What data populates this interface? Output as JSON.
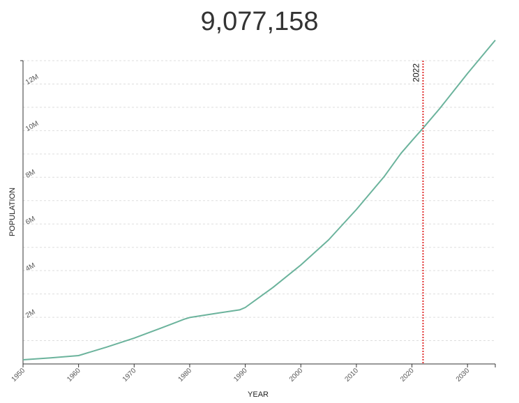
{
  "headline": "9,077,158",
  "chart_data": {
    "type": "line",
    "title": "",
    "xlabel": "YEAR",
    "ylabel": "POPULATION",
    "xlim": [
      1950,
      2035
    ],
    "ylim": [
      0,
      13000000
    ],
    "grid": "horizontal-dashed",
    "x_ticks": [
      1950,
      1960,
      1970,
      1980,
      1990,
      2000,
      2010,
      2020,
      2030
    ],
    "y_ticks": [
      {
        "value": 2000000,
        "label": "2M"
      },
      {
        "value": 4000000,
        "label": "4M"
      },
      {
        "value": 6000000,
        "label": "6M"
      },
      {
        "value": 8000000,
        "label": "8M"
      },
      {
        "value": 10000000,
        "label": "10M"
      },
      {
        "value": 12000000,
        "label": "12M"
      }
    ],
    "marker": {
      "x": 2022,
      "label": "2022",
      "color": "#e03030"
    },
    "series": [
      {
        "color": "#6bb39c",
        "x": [
          1950,
          1955,
          1960,
          1965,
          1970,
          1975,
          1979,
          1980,
          1985,
          1989,
          1990,
          1995,
          2000,
          2005,
          2010,
          2015,
          2018,
          2020,
          2022,
          2025,
          2030,
          2035
        ],
        "y": [
          180000,
          260000,
          360000,
          720000,
          1110000,
          1550000,
          1920000,
          1990000,
          2180000,
          2320000,
          2420000,
          3280000,
          4240000,
          5320000,
          6620000,
          8030000,
          9020000,
          9570000,
          10110000,
          10950000,
          12450000,
          13880000
        ]
      }
    ]
  }
}
